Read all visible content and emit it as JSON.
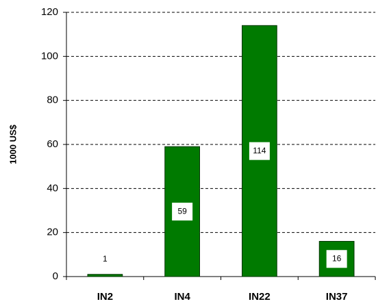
{
  "chart_data": {
    "type": "bar",
    "y_label": "1000 US$",
    "categories": [
      "IN2",
      "IN4",
      "IN22",
      "IN37"
    ],
    "values": [
      1,
      59,
      114,
      16
    ],
    "color": "#007a00",
    "ylim": [
      0,
      120
    ],
    "yticks": [
      0,
      20,
      40,
      60,
      80,
      100,
      120
    ],
    "grid": true
  }
}
